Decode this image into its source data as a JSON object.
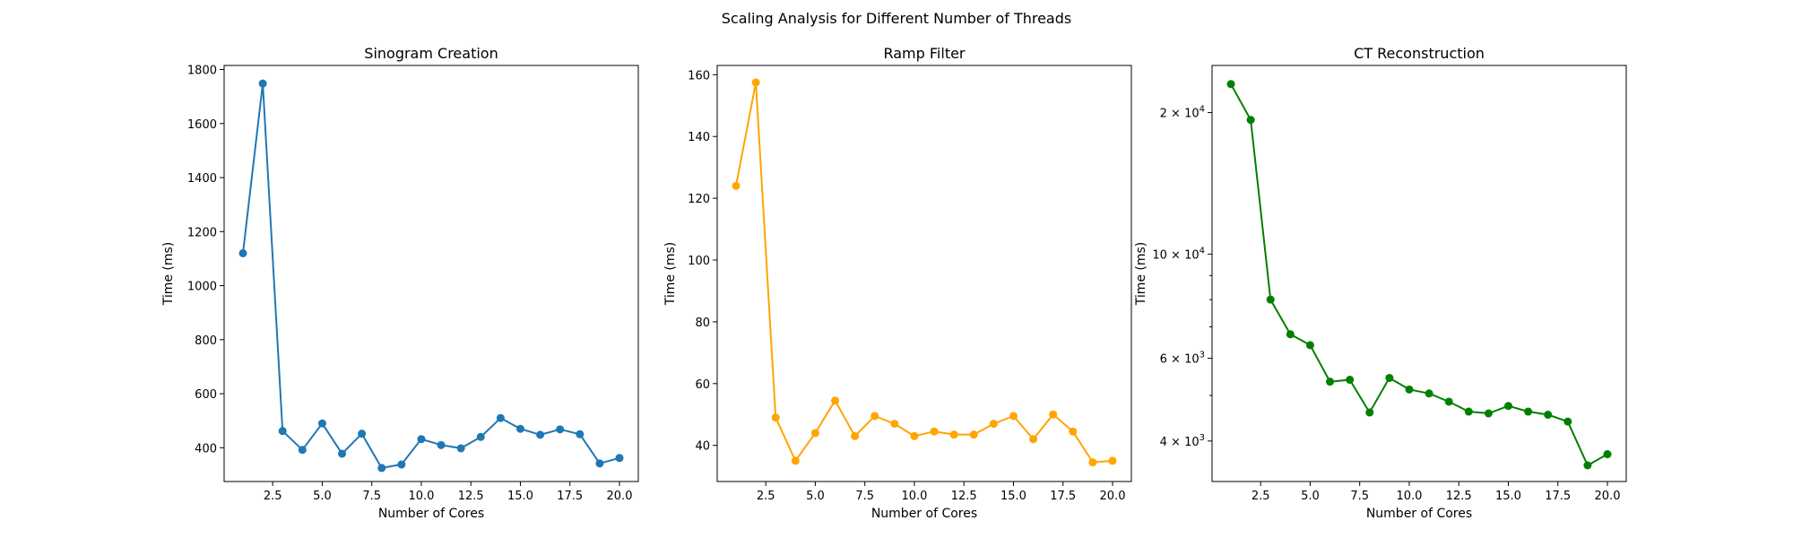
{
  "figure": {
    "title": "Scaling Analysis for Different Number of Threads"
  },
  "chart_data": [
    {
      "type": "line",
      "title": "Sinogram Creation",
      "xlabel": "Number of Cores",
      "ylabel": "Time (ms)",
      "x": [
        1,
        2,
        3,
        4,
        5,
        6,
        7,
        8,
        9,
        10,
        11,
        12,
        13,
        14,
        15,
        16,
        17,
        18,
        19,
        20
      ],
      "series": [
        {
          "values": [
            1120,
            1748,
            462,
            392,
            490,
            378,
            452,
            325,
            338,
            432,
            410,
            398,
            440,
            510,
            470,
            448,
            468,
            450,
            342,
            362
          ],
          "color": "#1f77b4"
        }
      ],
      "xlim": [
        0.05,
        20.95
      ],
      "ylim": [
        275,
        1815
      ],
      "xticks": [
        2.5,
        5,
        7.5,
        10,
        12.5,
        15,
        17.5,
        20
      ],
      "xtick_labels": [
        "2.5",
        "5.0",
        "7.5",
        "10.0",
        "12.5",
        "15.0",
        "17.5",
        "20.0"
      ],
      "yticks": [
        400,
        600,
        800,
        1000,
        1200,
        1400,
        1600,
        1800
      ],
      "ytick_labels": [
        "400",
        "600",
        "800",
        "1000",
        "1200",
        "1400",
        "1600",
        "1800"
      ],
      "yscale": "linear",
      "grid": false,
      "marker": "circle"
    },
    {
      "type": "line",
      "title": "Ramp Filter",
      "xlabel": "Number of Cores",
      "ylabel": "Time (ms)",
      "x": [
        1,
        2,
        3,
        4,
        5,
        6,
        7,
        8,
        9,
        10,
        11,
        12,
        13,
        14,
        15,
        16,
        17,
        18,
        19,
        20
      ],
      "series": [
        {
          "values": [
            124,
            157.5,
            49,
            35,
            44,
            54.5,
            43,
            49.5,
            47,
            43,
            44.5,
            43.5,
            43.5,
            47,
            49.5,
            42,
            50,
            44.5,
            34.5,
            35
          ],
          "color": "#ffa500"
        }
      ],
      "xlim": [
        0.05,
        20.95
      ],
      "ylim": [
        28.3,
        163
      ],
      "xticks": [
        2.5,
        5,
        7.5,
        10,
        12.5,
        15,
        17.5,
        20
      ],
      "xtick_labels": [
        "2.5",
        "5.0",
        "7.5",
        "10.0",
        "12.5",
        "15.0",
        "17.5",
        "20.0"
      ],
      "yticks": [
        40,
        60,
        80,
        100,
        120,
        140,
        160
      ],
      "ytick_labels": [
        "40",
        "60",
        "80",
        "100",
        "120",
        "140",
        "160"
      ],
      "yscale": "linear",
      "grid": false,
      "marker": "circle"
    },
    {
      "type": "line",
      "title": "CT Reconstruction",
      "xlabel": "Number of Cores",
      "ylabel": "Time (ms)",
      "x": [
        1,
        2,
        3,
        4,
        5,
        6,
        7,
        8,
        9,
        10,
        11,
        12,
        13,
        14,
        15,
        16,
        17,
        18,
        19,
        20
      ],
      "series": [
        {
          "values": [
            23000,
            19300,
            8000,
            6750,
            6400,
            5350,
            5400,
            4600,
            5450,
            5150,
            5050,
            4850,
            4620,
            4580,
            4750,
            4620,
            4550,
            4400,
            3550,
            3750
          ],
          "color": "#008000"
        }
      ],
      "xlim": [
        0.05,
        20.95
      ],
      "ylim": [
        3280,
        25200
      ],
      "xticks": [
        2.5,
        5,
        7.5,
        10,
        12.5,
        15,
        17.5,
        20
      ],
      "xtick_labels": [
        "2.5",
        "5.0",
        "7.5",
        "10.0",
        "12.5",
        "15.0",
        "17.5",
        "20.0"
      ],
      "yticks": [
        4000,
        6000,
        10000,
        20000
      ],
      "ytick_labels": [
        [
          "4",
          "3"
        ],
        [
          "6",
          "3"
        ],
        [
          "10",
          "4"
        ],
        [
          "2",
          "4"
        ]
      ],
      "ytick_label_format": "mantissa × 10^exponent",
      "minor_yticks": [
        3000,
        5000,
        7000,
        8000,
        9000
      ],
      "yscale": "log",
      "grid": false,
      "marker": "circle"
    }
  ]
}
